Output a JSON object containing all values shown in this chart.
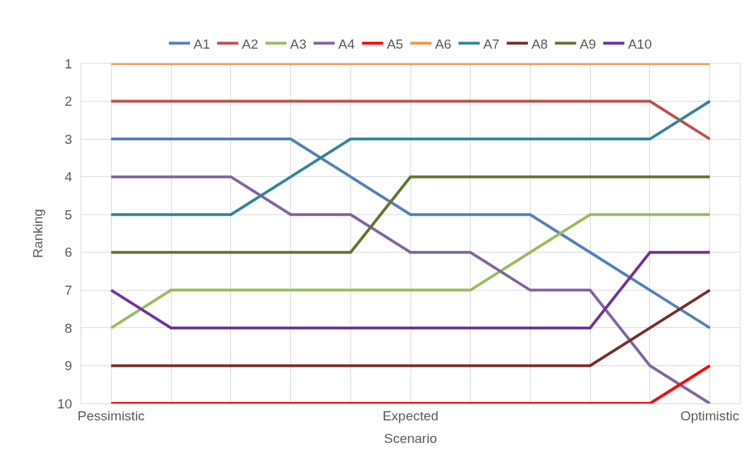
{
  "chart_data": {
    "type": "line",
    "xlabel": "Scenario",
    "ylabel": "Ranking",
    "categories": [
      "Pessimistic",
      null,
      null,
      null,
      null,
      "Expected",
      null,
      null,
      null,
      null,
      "Optimistic"
    ],
    "ylim": [
      10,
      1
    ],
    "yticks": [
      1,
      2,
      3,
      4,
      5,
      6,
      7,
      8,
      9,
      10
    ],
    "grid": true,
    "legend": "top",
    "marker": "none",
    "line_style": "solid",
    "series": [
      {
        "name": "A1",
        "color": "#4f81bd",
        "values": [
          3,
          3,
          3,
          3,
          4,
          5,
          5,
          5,
          6,
          7,
          8
        ]
      },
      {
        "name": "A2",
        "color": "#c0504d",
        "values": [
          2,
          2,
          2,
          2,
          2,
          2,
          2,
          2,
          2,
          2,
          3
        ]
      },
      {
        "name": "A3",
        "color": "#9bbb59",
        "values": [
          8,
          7,
          7,
          7,
          7,
          7,
          7,
          6,
          5,
          5,
          5
        ]
      },
      {
        "name": "A4",
        "color": "#8064a2",
        "values": [
          4,
          4,
          4,
          5,
          5,
          6,
          6,
          7,
          7,
          9,
          10
        ]
      },
      {
        "name": "A5",
        "color": "#ff0000",
        "values": [
          10,
          10,
          10,
          10,
          10,
          10,
          10,
          10,
          10,
          10,
          9
        ]
      },
      {
        "name": "A6",
        "color": "#f79646",
        "values": [
          1,
          1,
          1,
          1,
          1,
          1,
          1,
          1,
          1,
          1,
          1
        ]
      },
      {
        "name": "A7",
        "color": "#31859c",
        "values": [
          5,
          5,
          5,
          4,
          3,
          3,
          3,
          3,
          3,
          3,
          2
        ]
      },
      {
        "name": "A8",
        "color": "#772c2a",
        "values": [
          9,
          9,
          9,
          9,
          9,
          9,
          9,
          9,
          9,
          8,
          7
        ]
      },
      {
        "name": "A9",
        "color": "#5f7530",
        "values": [
          6,
          6,
          6,
          6,
          6,
          4,
          4,
          4,
          4,
          4,
          4
        ]
      },
      {
        "name": "A10",
        "color": "#7030a0",
        "values": [
          7,
          8,
          8,
          8,
          8,
          8,
          8,
          8,
          8,
          6,
          6
        ]
      }
    ]
  }
}
